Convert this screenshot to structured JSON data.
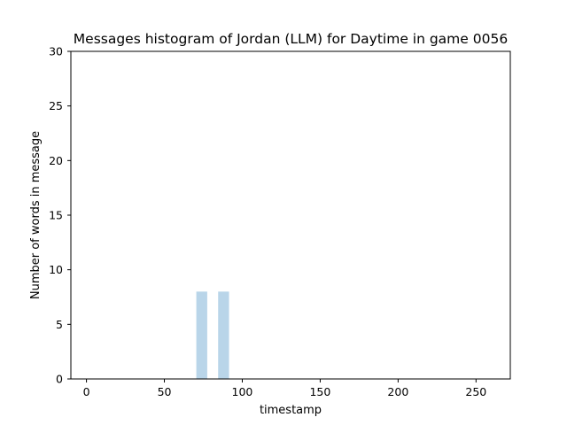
{
  "chart_data": {
    "type": "bar",
    "title": "Messages histogram of Jordan (LLM) for Daytime in game 0056",
    "xlabel": "timestamp",
    "ylabel": "Number of words in message",
    "xlim": [
      -10,
      272
    ],
    "ylim": [
      0,
      30
    ],
    "x_ticks": [
      0,
      50,
      100,
      150,
      200,
      250
    ],
    "y_ticks": [
      0,
      5,
      10,
      15,
      20,
      25,
      30
    ],
    "bar_width": 7,
    "bars": [
      {
        "x": 74,
        "value": 8
      },
      {
        "x": 88,
        "value": 8
      }
    ],
    "bar_color": "#b9d5e9",
    "grid": false,
    "legend": "none"
  }
}
